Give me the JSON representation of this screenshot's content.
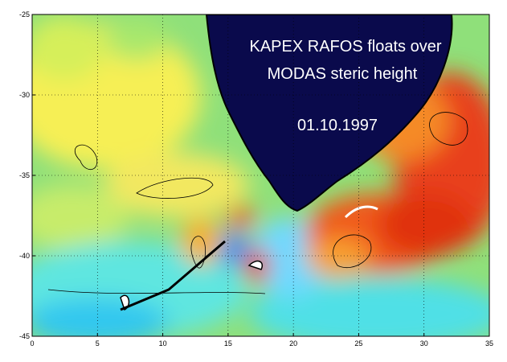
{
  "map": {
    "title_lines": [
      "KAPEX RAFOS floats over",
      "MODAS steric height"
    ],
    "date": "01.10.1997",
    "xlim": [
      0,
      35
    ],
    "ylim": [
      -45,
      -25
    ],
    "xticks": [
      0,
      5,
      10,
      15,
      20,
      25,
      30,
      35
    ],
    "yticks": [
      -25,
      -30,
      -35,
      -40,
      -45
    ],
    "grid": true
  }
}
